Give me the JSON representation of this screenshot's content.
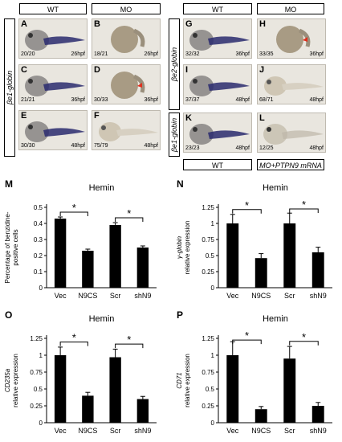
{
  "top": {
    "headers": {
      "left_wt": "WT",
      "left_mo": "MO",
      "right_wt": "WT",
      "right_mo": "MO"
    },
    "bottom_labels": {
      "wt": "WT",
      "rescue": "MO+PTPN9 mRNA"
    },
    "gene_labels": {
      "be1_left": "βe1-globin",
      "be2": "βe2-globin",
      "be1_right": "βe1-globin"
    },
    "panels": [
      {
        "letter": "A",
        "count": "20/20",
        "stage": "26hpf",
        "type": "stained"
      },
      {
        "letter": "B",
        "count": "18/21",
        "stage": "26hpf",
        "type": "ball"
      },
      {
        "letter": "C",
        "count": "21/21",
        "stage": "36hpf",
        "type": "stained"
      },
      {
        "letter": "D",
        "count": "30/33",
        "stage": "36hpf",
        "type": "ball-arrow"
      },
      {
        "letter": "E",
        "count": "30/30",
        "stage": "48hpf",
        "type": "stained-long"
      },
      {
        "letter": "F",
        "count": "75/79",
        "stage": "48hpf",
        "type": "pale"
      },
      {
        "letter": "G",
        "count": "32/32",
        "stage": "36hpf",
        "type": "stained"
      },
      {
        "letter": "H",
        "count": "33/35",
        "stage": "36hpf",
        "type": "ball-arrow"
      },
      {
        "letter": "I",
        "count": "37/37",
        "stage": "48hpf",
        "type": "stained-long"
      },
      {
        "letter": "J",
        "count": "68/71",
        "stage": "48hpf",
        "type": "pale"
      },
      {
        "letter": "K",
        "count": "23/23",
        "stage": "48hpf",
        "type": "stained-long"
      },
      {
        "letter": "L",
        "count": "12/25",
        "stage": "48hpf",
        "type": "pale-stained"
      }
    ]
  },
  "colors": {
    "stain": "#2a2a6e",
    "arrow": "#e0301e",
    "bar": "#000000"
  },
  "chart_data": [
    {
      "id": "M",
      "type": "bar",
      "title": "Hemin",
      "ylabel": "Percentage of benzidine-positive cells",
      "ylabel_lines": [
        "Percentage of benzidine-",
        "positive cells"
      ],
      "categories": [
        "Vec",
        "N9CS",
        "Scr",
        "shN9"
      ],
      "values": [
        0.43,
        0.23,
        0.39,
        0.25
      ],
      "errors": [
        0.01,
        0.01,
        0.015,
        0.01
      ],
      "ylim": [
        0,
        0.5
      ],
      "yticks": [
        "0",
        "0.1",
        "0.2",
        "0.3",
        "0.4",
        "0.5"
      ],
      "significance": [
        {
          "from": 0,
          "to": 1,
          "label": "*"
        },
        {
          "from": 2,
          "to": 3,
          "label": "*"
        }
      ]
    },
    {
      "id": "N",
      "type": "bar",
      "title": "Hemin",
      "ylabel": "γ-globin relative expression",
      "ylabel_lines": [
        "γ-globin",
        "relative expression"
      ],
      "categories": [
        "Vec",
        "N9CS",
        "Scr",
        "shN9"
      ],
      "values": [
        1.0,
        0.46,
        1.0,
        0.55
      ],
      "errors": [
        0.14,
        0.07,
        0.16,
        0.08
      ],
      "ylim": [
        0,
        1.25
      ],
      "yticks": [
        "0",
        "0.25",
        "0.5",
        "0.75",
        "1",
        "1.25"
      ],
      "significance": [
        {
          "from": 0,
          "to": 1,
          "label": "*"
        },
        {
          "from": 2,
          "to": 3,
          "label": "*"
        }
      ]
    },
    {
      "id": "O",
      "type": "bar",
      "title": "Hemin",
      "ylabel": "CD235a relative expression",
      "ylabel_lines": [
        "CD235a",
        "relative expression"
      ],
      "categories": [
        "Vec",
        "N9CS",
        "Scr",
        "shN9"
      ],
      "values": [
        1.0,
        0.4,
        0.97,
        0.35
      ],
      "errors": [
        0.12,
        0.05,
        0.12,
        0.04
      ],
      "ylim": [
        0,
        1.25
      ],
      "yticks": [
        "0",
        "0.25",
        "0.5",
        "0.75",
        "1",
        "1.25"
      ],
      "significance": [
        {
          "from": 0,
          "to": 1,
          "label": "*"
        },
        {
          "from": 2,
          "to": 3,
          "label": "*"
        }
      ]
    },
    {
      "id": "P",
      "type": "bar",
      "title": "Hemin",
      "ylabel": "CD71 relative expression",
      "ylabel_lines": [
        "CD71",
        "relative expression"
      ],
      "categories": [
        "Vec",
        "N9CS",
        "Scr",
        "shN9"
      ],
      "values": [
        1.0,
        0.2,
        0.95,
        0.25
      ],
      "errors": [
        0.2,
        0.04,
        0.18,
        0.05
      ],
      "ylim": [
        0,
        1.25
      ],
      "yticks": [
        "0",
        "0.25",
        "0.5",
        "0.75",
        "1",
        "1.25"
      ],
      "significance": [
        {
          "from": 0,
          "to": 1,
          "label": "*"
        },
        {
          "from": 2,
          "to": 3,
          "label": "*"
        }
      ]
    }
  ]
}
